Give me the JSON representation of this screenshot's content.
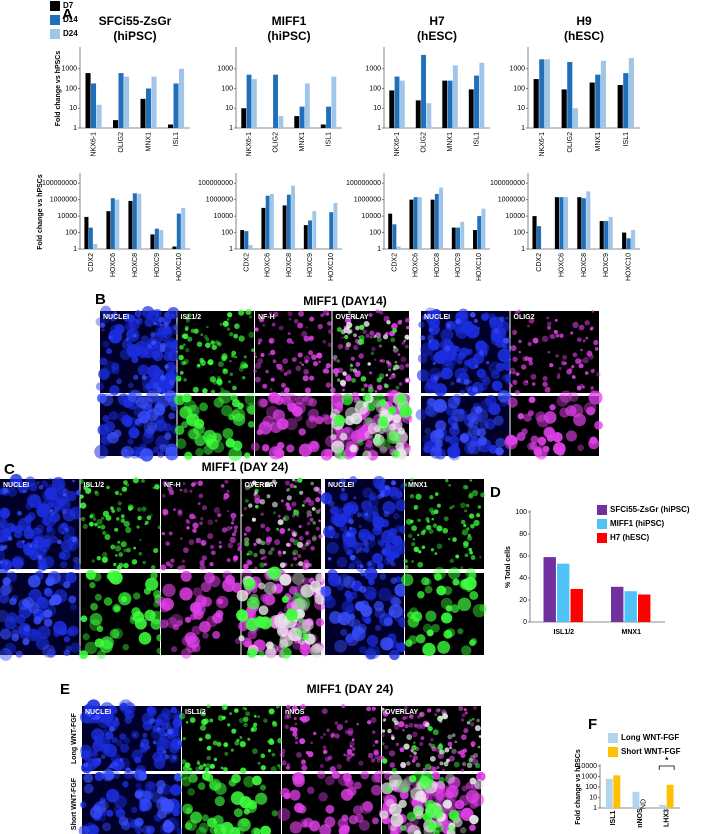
{
  "panel_labels": [
    "A",
    "B",
    "C",
    "D",
    "E",
    "F"
  ],
  "images": [
    {
      "heading": "MIFF1 (DAY14)",
      "channels": [
        "NUCLEI",
        "ISL1/2",
        "NF-H",
        "OVERLAY",
        "NUCLEI",
        "OLIG2"
      ]
    },
    {
      "heading": "MIFF1 (DAY 24)",
      "channels": [
        "NUCLEI",
        "ISL1/2",
        "NF-H",
        "OVERLAY",
        "NUCLEI",
        "MNX1"
      ]
    },
    {
      "heading": "MIFF1 (DAY 24)",
      "channels": [
        "NUCLEI",
        "ISL1/2",
        "nNOS",
        "OVERLAY"
      ],
      "rows": [
        "Long WNT-FGF",
        "Short WNT-FGF"
      ]
    }
  ],
  "chart_data": [
    {
      "type": "bar",
      "log_scale": true,
      "title": "SFCi55-ZsGr",
      "subtitle": "(hiPSC)",
      "ylabel": "Fold change vs hPSCs",
      "categories": [
        "NKX6-1",
        "OLIG2",
        "MNX1",
        "ISL1"
      ],
      "ylim": [
        1,
        10000
      ],
      "yticks": [
        1,
        10,
        100,
        1000
      ],
      "series": [
        {
          "name": "D7",
          "color": "#000000",
          "values": [
            600,
            2.5,
            30,
            1.5
          ]
        },
        {
          "name": "D14",
          "color": "#1f6fba",
          "values": [
            180,
            600,
            100,
            180
          ]
        },
        {
          "name": "D24",
          "color": "#9fc5e8",
          "values": [
            15,
            400,
            400,
            1000
          ]
        }
      ]
    },
    {
      "type": "bar",
      "log_scale": true,
      "title": "MIFF1",
      "subtitle": "(hiPSC)",
      "categories": [
        "NKX6-1",
        "OLIG2",
        "MNX1",
        "ISL1"
      ],
      "ylim": [
        1,
        10000
      ],
      "yticks": [
        1,
        10,
        100,
        1000
      ],
      "series": [
        {
          "color": "#000000",
          "values": [
            10,
            null,
            4,
            1.5
          ]
        },
        {
          "color": "#1f6fba",
          "values": [
            500,
            500,
            12,
            12
          ]
        },
        {
          "color": "#9fc5e8",
          "values": [
            300,
            4,
            180,
            400
          ]
        }
      ]
    },
    {
      "type": "bar",
      "log_scale": true,
      "title": "H7",
      "subtitle": "(hESC)",
      "categories": [
        "NKX6-1",
        "OLIG2",
        "MNX1",
        "ISL1"
      ],
      "ylim": [
        1,
        10000
      ],
      "yticks": [
        1,
        10,
        100,
        1000
      ],
      "series": [
        {
          "color": "#000000",
          "values": [
            80,
            25,
            250,
            90
          ]
        },
        {
          "color": "#1f6fba",
          "values": [
            400,
            5000,
            250,
            450
          ]
        },
        {
          "color": "#9fc5e8",
          "values": [
            250,
            18,
            1500,
            2000
          ]
        }
      ]
    },
    {
      "type": "bar",
      "log_scale": true,
      "title": "H9",
      "subtitle": "(hESC)",
      "categories": [
        "NKX6-1",
        "OLIG2",
        "MNX1",
        "ISL1"
      ],
      "ylim": [
        1,
        10000
      ],
      "yticks": [
        1,
        10,
        100,
        1000
      ],
      "series": [
        {
          "color": "#000000",
          "values": [
            300,
            90,
            200,
            150
          ]
        },
        {
          "color": "#1f6fba",
          "values": [
            3000,
            2200,
            500,
            600
          ]
        },
        {
          "color": "#9fc5e8",
          "values": [
            3000,
            10,
            2500,
            3500
          ]
        }
      ]
    },
    {
      "type": "bar",
      "log_scale": true,
      "ylabel": "Fold change vs hPSCs",
      "categories": [
        "CDX2",
        "HOXC6",
        "HOXC8",
        "HOXC9",
        "HOXC10"
      ],
      "ylim": [
        1,
        1000000000
      ],
      "yticks": [
        1,
        100,
        10000,
        1000000,
        100000000
      ],
      "series": [
        {
          "color": "#000000",
          "values": [
            8000,
            40000,
            700000,
            60,
            2
          ]
        },
        {
          "color": "#1f6fba",
          "values": [
            400,
            1500000,
            6000000,
            300,
            20000
          ]
        },
        {
          "color": "#9fc5e8",
          "values": [
            4,
            1000000,
            5000000,
            200,
            100000
          ]
        }
      ]
    },
    {
      "type": "bar",
      "log_scale": true,
      "categories": [
        "CDX2",
        "HOXC6",
        "HOXC8",
        "HOXC9",
        "HOXC10"
      ],
      "ylim": [
        1,
        1000000000
      ],
      "yticks": [
        1,
        100,
        10000,
        1000000,
        100000000
      ],
      "series": [
        {
          "color": "#000000",
          "values": [
            200,
            100000,
            200000,
            800,
            1
          ]
        },
        {
          "color": "#1f6fba",
          "values": [
            150,
            3000000,
            4000000,
            3000,
            30000
          ]
        },
        {
          "color": "#9fc5e8",
          "values": [
            3,
            5000000,
            50000000,
            40000,
            400000
          ]
        }
      ]
    },
    {
      "type": "bar",
      "log_scale": true,
      "categories": [
        "CDX2",
        "HOXC6",
        "HOXC8",
        "HOXC9",
        "HOXC10"
      ],
      "ylim": [
        1,
        1000000000
      ],
      "yticks": [
        1,
        100,
        10000,
        1000000,
        100000000
      ],
      "series": [
        {
          "color": "#000000",
          "values": [
            20000,
            1000000,
            1000000,
            400,
            200
          ]
        },
        {
          "color": "#1f6fba",
          "values": [
            1000,
            2000000,
            5000000,
            400,
            10000
          ]
        },
        {
          "color": "#9fc5e8",
          "values": [
            2,
            2000000,
            30000000,
            2000,
            80000
          ]
        }
      ]
    },
    {
      "type": "bar",
      "log_scale": true,
      "categories": [
        "CDX2",
        "HOXC6",
        "HOXC8",
        "HOXC9",
        "HOXC10"
      ],
      "ylim": [
        1,
        1000000000
      ],
      "yticks": [
        1,
        100,
        10000,
        1000000,
        100000000
      ],
      "series": [
        {
          "color": "#000000",
          "values": [
            10000,
            2000000,
            2000000,
            2500,
            100
          ]
        },
        {
          "color": "#1f6fba",
          "values": [
            600,
            2000000,
            1500000,
            2500,
            20
          ]
        },
        {
          "color": "#9fc5e8",
          "values": [
            null,
            2000000,
            10000000,
            8000,
            200
          ]
        }
      ]
    },
    {
      "type": "bar",
      "ylabel": "% Total cells",
      "categories": [
        "ISL1/2",
        "MNX1"
      ],
      "ylim": [
        0,
        100
      ],
      "yticks": [
        0,
        20,
        40,
        60,
        80,
        100
      ],
      "series": [
        {
          "name": "SFCi55-ZsGr (hiPSC)",
          "color": "#7030a0",
          "values": [
            59,
            32
          ]
        },
        {
          "name": "MIFF1 (hiPSC)",
          "color": "#4fc3f7",
          "values": [
            53,
            28
          ]
        },
        {
          "name": "H7 (hESC)",
          "color": "#ff0000",
          "values": [
            30,
            25
          ]
        }
      ]
    },
    {
      "type": "bar",
      "log_scale": true,
      "ylabel": "Fold change vs hPSCs",
      "categories": [
        "ISL1",
        "nNOS",
        "LHX3"
      ],
      "ylim": [
        1,
        10000
      ],
      "yticks": [
        1,
        10,
        100,
        1000,
        10000
      ],
      "annotations": [
        "ND",
        "*"
      ],
      "series": [
        {
          "name": "Long WNT-FGF",
          "color": "#b4d4ee",
          "values": [
            600,
            35,
            2
          ]
        },
        {
          "name": "Short WNT-FGF",
          "color": "#ffc000",
          "values": [
            1300,
            null,
            160
          ]
        }
      ]
    }
  ]
}
